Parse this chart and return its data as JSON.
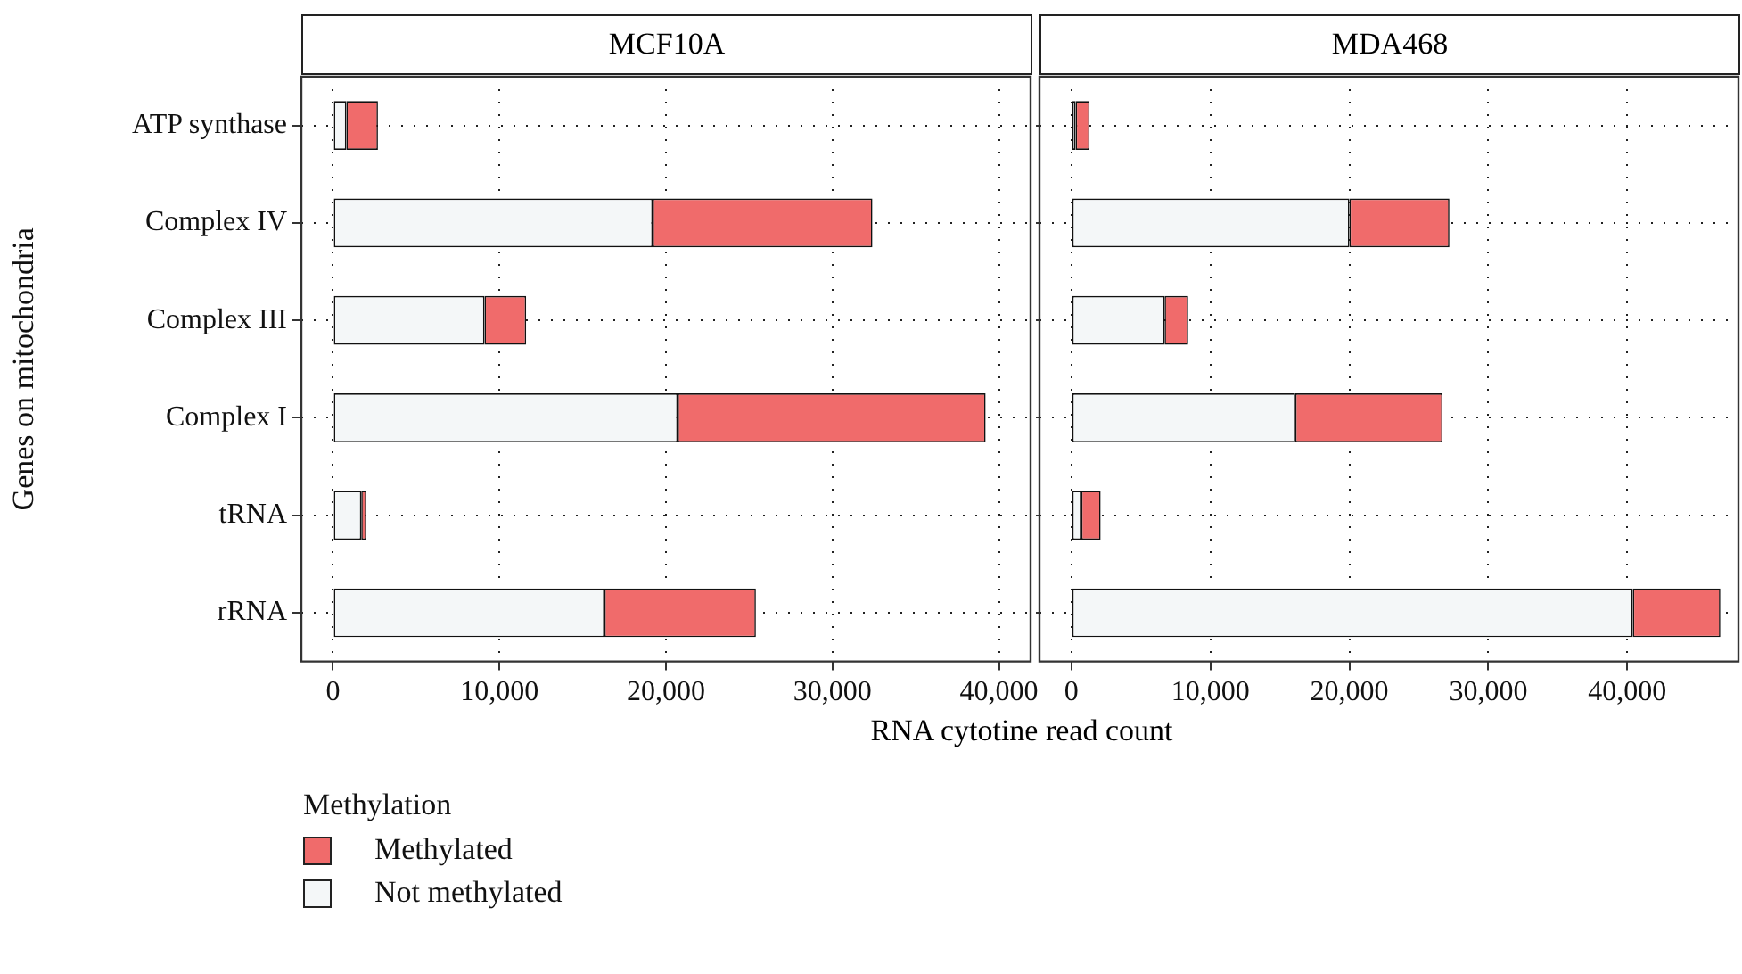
{
  "chart_data": [
    {
      "type": "bar",
      "title": "MCF10A",
      "xlabel": "RNA cytotine read count",
      "ylabel": "Genes on mitochondria",
      "legend_title": "Methylation",
      "legend": "bottom left",
      "orientation": "horizontal",
      "stacked": true,
      "grid": true,
      "categories": [
        "ATP synthase",
        "Complex IV",
        "Complex III",
        "Complex I",
        "tRNA",
        "rRNA"
      ],
      "series": [
        {
          "name": "Not methylated",
          "color": "#f4f7f8",
          "values": [
            800,
            19200,
            9100,
            20700,
            1700,
            16300
          ]
        },
        {
          "name": "Methylated",
          "color": "#f06b6b",
          "values": [
            1900,
            13200,
            2500,
            18500,
            300,
            9100
          ]
        }
      ],
      "xlim": [
        -1900,
        41900
      ],
      "xticks": [
        0,
        {
          "value": 10000,
          "label": "10,000"
        },
        {
          "value": 20000,
          "label": "20,000"
        },
        {
          "value": 30000,
          "label": "30,000"
        },
        {
          "value": 40000,
          "label": "40,000"
        }
      ]
    },
    {
      "type": "bar",
      "title": "MDA468",
      "orientation": "horizontal",
      "stacked": true,
      "grid": true,
      "tick_labels": "x",
      "categories": [
        null,
        null,
        null,
        null,
        null,
        null
      ],
      "series": [
        {
          "color": "#f4f7f8",
          "values": [
            300,
            20000,
            6700,
            16100,
            700,
            40400
          ]
        },
        {
          "color": "#f06b6b",
          "values": [
            1000,
            7200,
            1700,
            10600,
            1400,
            6300
          ]
        }
      ],
      "xlim": [
        -2300,
        48000
      ],
      "xticks": [
        0,
        {
          "value": 10000,
          "label": "10,000"
        },
        {
          "value": 20000,
          "label": "20,000"
        },
        {
          "value": 30000,
          "label": "30,000"
        },
        {
          "value": 40000,
          "label": "40,000"
        }
      ]
    }
  ]
}
